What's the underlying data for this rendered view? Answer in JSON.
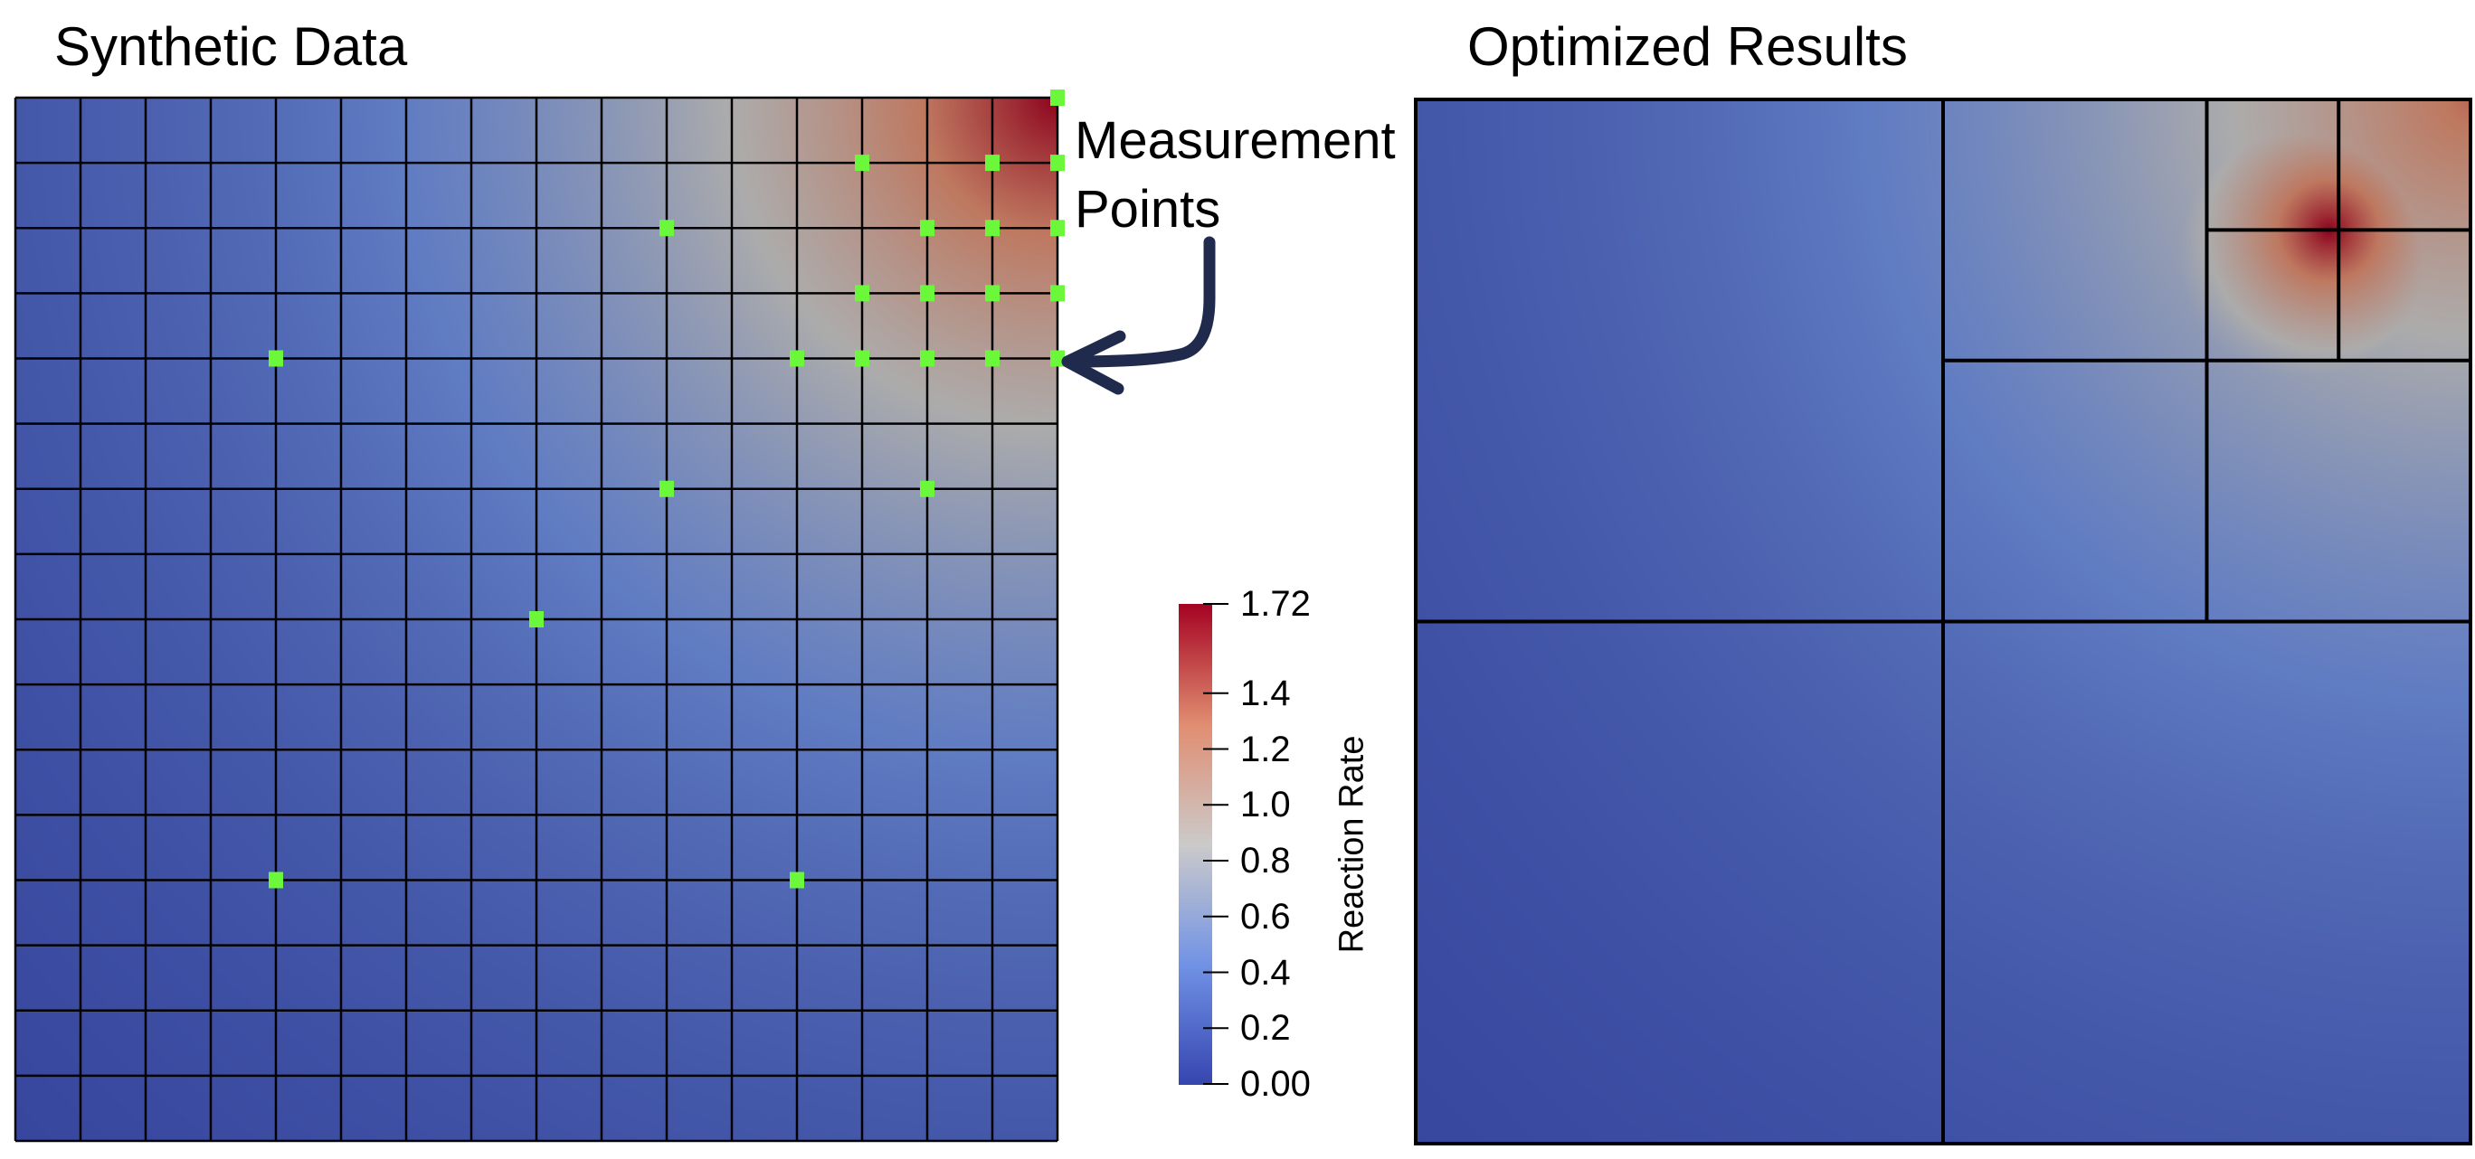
{
  "panels": {
    "left_title": "Synthetic Data",
    "right_title": "Optimized Results"
  },
  "annotation": {
    "line1": "Measurement",
    "line2": "Points",
    "arrow_color": "#1f2a4d",
    "marker_color": "#6cf83a"
  },
  "chart_data": [
    {
      "type": "heatmap",
      "title": "Synthetic Data",
      "mesh": "uniform 16 x 16 grid",
      "grid_cells": [
        16,
        16
      ],
      "field_peak": "top-right corner",
      "measurement_points_nodes": [
        [
          16,
          0
        ],
        [
          13,
          1
        ],
        [
          15,
          1
        ],
        [
          16,
          1
        ],
        [
          10,
          2
        ],
        [
          14,
          2
        ],
        [
          15,
          2
        ],
        [
          16,
          2
        ],
        [
          13,
          3
        ],
        [
          14,
          3
        ],
        [
          15,
          3
        ],
        [
          16,
          3
        ],
        [
          4,
          4
        ],
        [
          12,
          4
        ],
        [
          13,
          4
        ],
        [
          14,
          4
        ],
        [
          15,
          4
        ],
        [
          16,
          4
        ],
        [
          10,
          6
        ],
        [
          14,
          6
        ],
        [
          8,
          8
        ],
        [
          4,
          12
        ],
        [
          12,
          12
        ]
      ]
    },
    {
      "type": "heatmap",
      "title": "Optimized Results",
      "mesh": "adaptive quadtree: domain split 2x2, top-right quadrant split 2x2, its top-right cell split 2x2",
      "field_peak": "interior node near top-right"
    }
  ],
  "colorbar": {
    "title": "Reaction Rate",
    "colormap": "coolwarm",
    "range": [
      0.0,
      1.72
    ],
    "ticks": [
      {
        "value": 1.72,
        "label": "1.72"
      },
      {
        "value": 1.4,
        "label": "1.4"
      },
      {
        "value": 1.2,
        "label": "1.2"
      },
      {
        "value": 1.0,
        "label": "1.0"
      },
      {
        "value": 0.8,
        "label": "0.8"
      },
      {
        "value": 0.6,
        "label": "0.6"
      },
      {
        "value": 0.4,
        "label": "0.4"
      },
      {
        "value": 0.2,
        "label": "0.2"
      },
      {
        "value": 0.0,
        "label": "0.00"
      }
    ],
    "colors": [
      "#3b4cc0",
      "#7b9ff9",
      "#dddcdc",
      "#f49a7b",
      "#b40426"
    ]
  }
}
